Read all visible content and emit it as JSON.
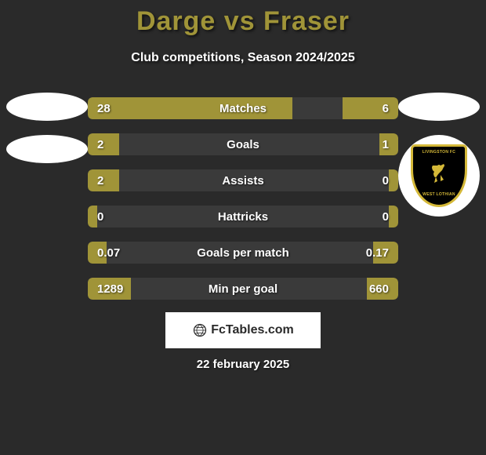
{
  "header": {
    "title": "Darge vs Fraser",
    "subtitle": "Club competitions, Season 2024/2025"
  },
  "colors": {
    "background": "#2a2a2a",
    "accent": "#a09438",
    "bar_bg": "#3a3a3a",
    "text": "#ffffff",
    "shield_bg": "#000000",
    "shield_border": "#d4b838"
  },
  "left_badge": {
    "type": "placeholder_ellipses",
    "count": 2
  },
  "right_badge": {
    "team": "Livingston",
    "top_text": "LIVINGSTON FC",
    "bottom_text": "WEST LOTHIAN"
  },
  "stats": [
    {
      "label": "Matches",
      "left_val": "28",
      "right_val": "6",
      "left_pct": 66,
      "right_pct": 18
    },
    {
      "label": "Goals",
      "left_val": "2",
      "right_val": "1",
      "left_pct": 10,
      "right_pct": 6
    },
    {
      "label": "Assists",
      "left_val": "2",
      "right_val": "0",
      "left_pct": 10,
      "right_pct": 3
    },
    {
      "label": "Hattricks",
      "left_val": "0",
      "right_val": "0",
      "left_pct": 3,
      "right_pct": 3
    },
    {
      "label": "Goals per match",
      "left_val": "0.07",
      "right_val": "0.17",
      "left_pct": 6,
      "right_pct": 8
    },
    {
      "label": "Min per goal",
      "left_val": "1289",
      "right_val": "660",
      "left_pct": 14,
      "right_pct": 10
    }
  ],
  "footer": {
    "logo_text": "FcTables.com",
    "date": "22 february 2025"
  }
}
